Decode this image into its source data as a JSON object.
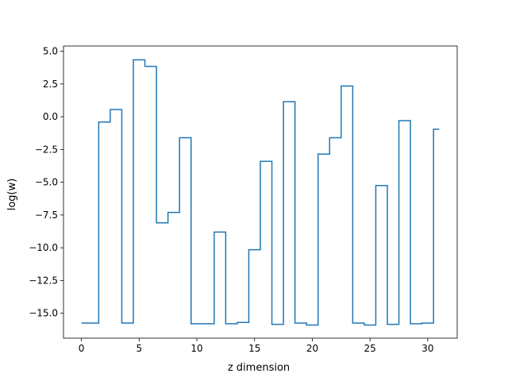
{
  "chart_data": {
    "type": "line",
    "drawstyle": "steps-mid",
    "title": "",
    "xlabel": "z dimension",
    "ylabel": "log(w)",
    "xlim": [
      -1.55,
      32.55
    ],
    "ylim": [
      -16.9,
      5.4
    ],
    "xticks": [
      0,
      5,
      10,
      15,
      20,
      25,
      30
    ],
    "xtick_labels": [
      "0",
      "5",
      "10",
      "15",
      "20",
      "25",
      "30"
    ],
    "yticks": [
      5.0,
      2.5,
      0.0,
      -2.5,
      -5.0,
      -7.5,
      -10.0,
      -12.5,
      -15.0
    ],
    "ytick_labels": [
      "5.0",
      "2.5",
      "0.0",
      "−2.5",
      "−5.0",
      "−7.5",
      "−10.0",
      "−12.5",
      "−15.0"
    ],
    "grid": false,
    "series": [
      {
        "color": "#1f77b4",
        "x": [
          0,
          1,
          2,
          3,
          4,
          5,
          6,
          7,
          8,
          9,
          10,
          11,
          12,
          13,
          14,
          15,
          16,
          17,
          18,
          19,
          20,
          21,
          22,
          23,
          24,
          25,
          26,
          27,
          28,
          29,
          30,
          31
        ],
        "y": [
          -15.75,
          -15.75,
          -0.4,
          0.55,
          -15.75,
          4.35,
          3.85,
          -8.1,
          -7.3,
          -1.6,
          -15.8,
          -15.8,
          -8.8,
          -15.8,
          -15.7,
          -10.15,
          -3.4,
          -15.85,
          1.15,
          -15.75,
          -15.9,
          -2.85,
          -1.6,
          2.35,
          -15.75,
          -15.9,
          -5.25,
          -15.85,
          -0.3,
          -15.8,
          -15.75,
          -0.95
        ]
      }
    ]
  }
}
